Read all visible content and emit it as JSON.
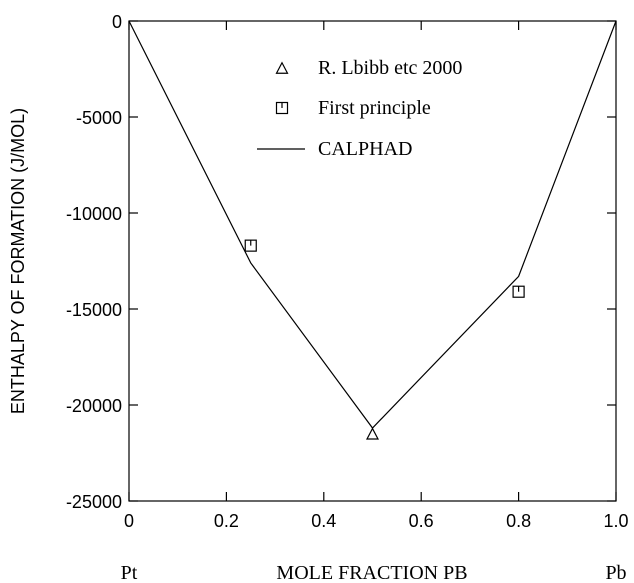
{
  "chart_data": {
    "type": "line",
    "xlabel": "MOLE  FRACTION PB",
    "ylabel": "ENTHALPY OF FORMATION (J/MOL)",
    "xlim": [
      0,
      1.0
    ],
    "ylim": [
      -25000,
      0
    ],
    "x_ticks": [
      0,
      0.2,
      0.4,
      0.6,
      0.8,
      1.0
    ],
    "x_tick_labels": [
      "0",
      "0.2",
      "0.4",
      "0.6",
      "0.8",
      "1.0"
    ],
    "y_ticks": [
      0,
      -5000,
      -10000,
      -15000,
      -20000,
      -25000
    ],
    "y_tick_labels": [
      "0",
      "-5000",
      "-10000",
      "-15000",
      "-20000",
      "-25000"
    ],
    "x_end_labels": {
      "left": "Pt",
      "right": "Pb"
    },
    "grid": false,
    "legend": {
      "placement": "top-center",
      "entries": [
        {
          "label": "R. Lbibb etc 2000",
          "marker": "triangle"
        },
        {
          "label": "First principle",
          "marker": "square"
        },
        {
          "label": "CALPHAD",
          "marker": "line"
        }
      ]
    },
    "series": [
      {
        "name": "CALPHAD",
        "style": "line",
        "points": [
          [
            0,
            0
          ],
          [
            0.25,
            -12600
          ],
          [
            0.5,
            -21200
          ],
          [
            0.8,
            -13300
          ],
          [
            1.0,
            0
          ]
        ]
      },
      {
        "name": "First principle",
        "style": "square",
        "points": [
          [
            0.25,
            -11700
          ],
          [
            0.8,
            -14100
          ]
        ]
      },
      {
        "name": "R. Lbibb etc 2000",
        "style": "triangle",
        "points": [
          [
            0.5,
            -21500
          ]
        ]
      }
    ],
    "colors": {
      "line": "#000000",
      "background": "#ffffff"
    }
  }
}
